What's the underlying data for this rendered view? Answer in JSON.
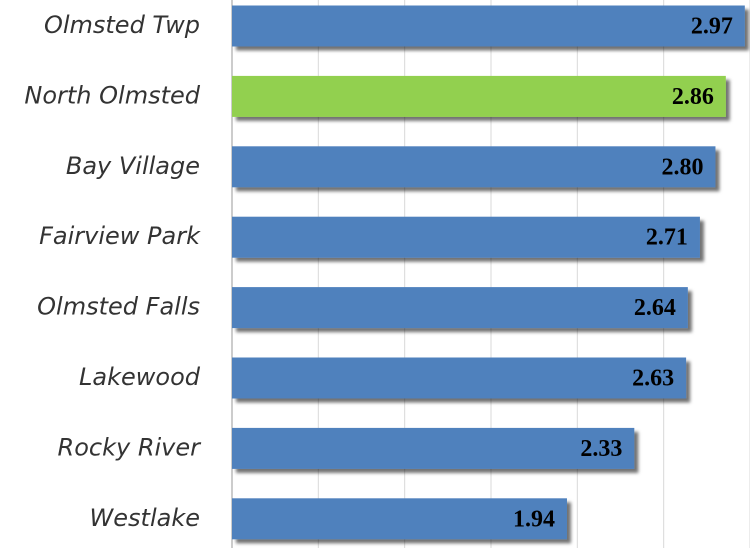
{
  "chart_data": {
    "type": "bar",
    "orientation": "horizontal",
    "categories": [
      "Olmsted Twp",
      "North Olmsted",
      "Bay Village",
      "Fairview Park",
      "Olmsted Falls",
      "Lakewood",
      "Rocky River",
      "Westlake"
    ],
    "values": [
      2.97,
      2.86,
      2.8,
      2.71,
      2.64,
      2.63,
      2.33,
      1.94
    ],
    "value_labels": [
      "2.97",
      "2.86",
      "2.80",
      "2.71",
      "2.64",
      "2.63",
      "2.33",
      "1.94"
    ],
    "colors": [
      "#4f81bd",
      "#92d050",
      "#4f81bd",
      "#4f81bd",
      "#4f81bd",
      "#4f81bd",
      "#4f81bd",
      "#4f81bd"
    ],
    "xlim": [
      0,
      3
    ],
    "xticks": [
      0,
      0.5,
      1,
      1.5,
      2,
      2.5,
      3
    ],
    "grid": true
  }
}
